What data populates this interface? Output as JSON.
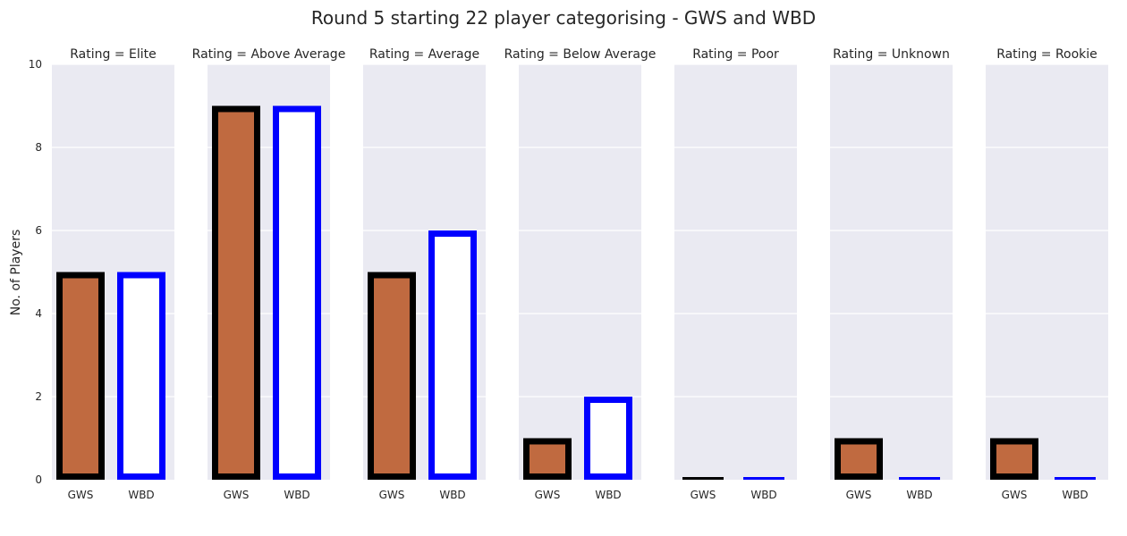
{
  "chart_data": {
    "type": "bar",
    "title": "Round 5 starting 22 player categorising - GWS and WBD",
    "ylabel": "No. of Players",
    "xlabel": "",
    "ylim": [
      0,
      10
    ],
    "yticks": [
      "0",
      "2",
      "4",
      "6",
      "8",
      "10"
    ],
    "grid": true,
    "categories": [
      "GWS",
      "WBD"
    ],
    "series_styles": [
      {
        "name": "GWS",
        "fill": "#c06a40",
        "stroke": "#000000"
      },
      {
        "name": "WBD",
        "fill": "#ffffff",
        "stroke": "#0000ff"
      }
    ],
    "panel_background": "#eaeaf2",
    "panels": [
      {
        "title": "Rating = Elite",
        "values": [
          5,
          5
        ]
      },
      {
        "title": "Rating = Above Average",
        "values": [
          9,
          9
        ]
      },
      {
        "title": "Rating = Average",
        "values": [
          5,
          6
        ]
      },
      {
        "title": "Rating = Below Average",
        "values": [
          1,
          2
        ]
      },
      {
        "title": "Rating = Poor",
        "values": [
          0,
          0
        ]
      },
      {
        "title": "Rating = Unknown",
        "values": [
          1,
          0
        ]
      },
      {
        "title": "Rating = Rookie",
        "values": [
          1,
          0
        ]
      }
    ]
  }
}
